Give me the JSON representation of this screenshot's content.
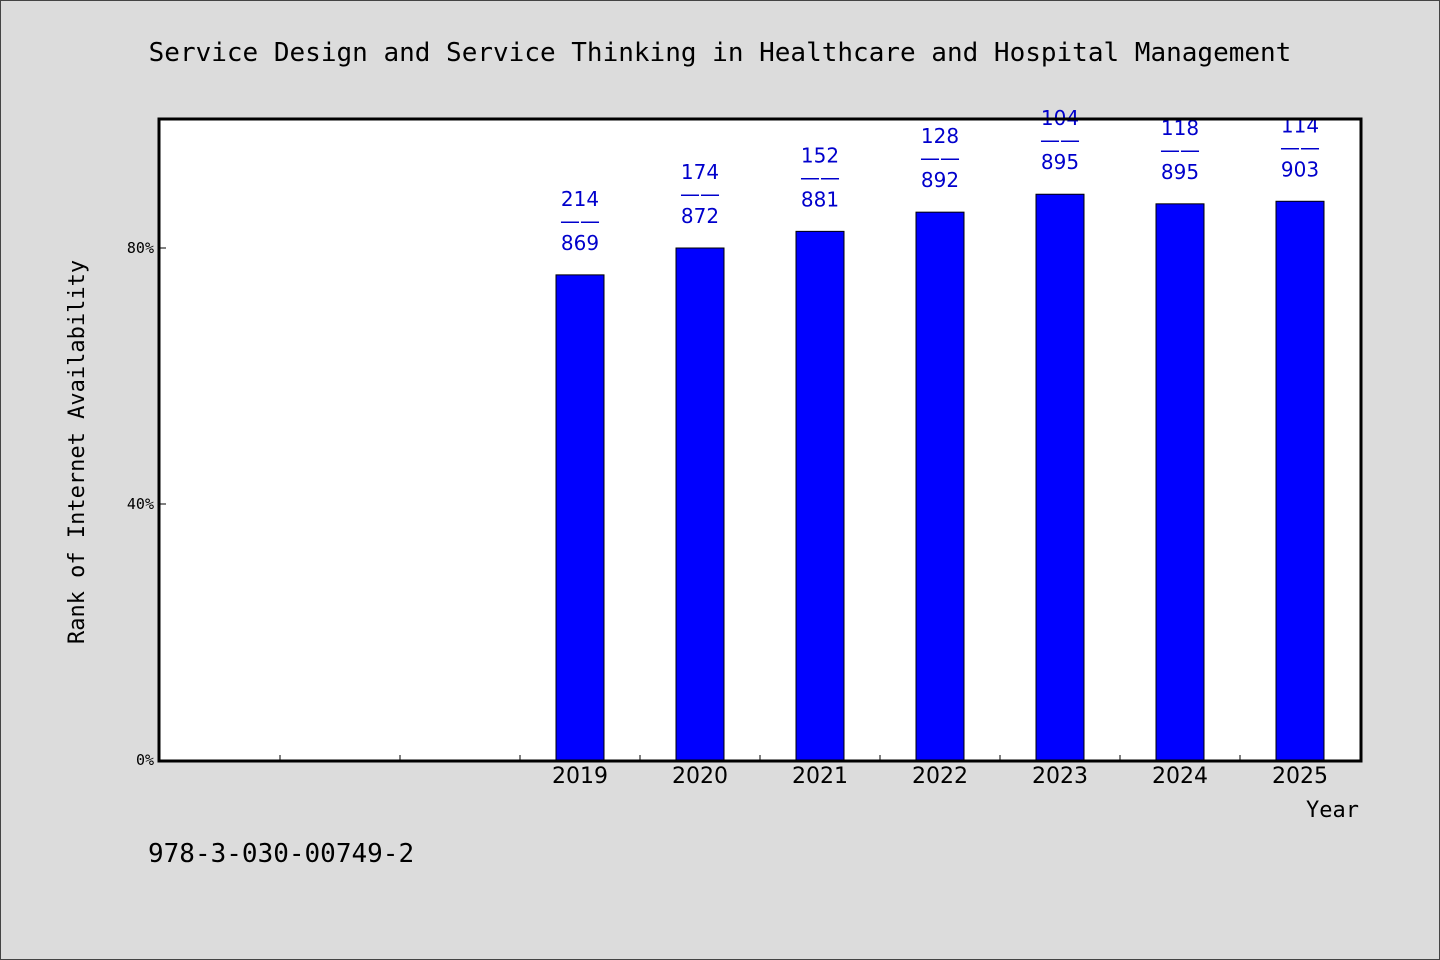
{
  "chart_data": {
    "type": "bar",
    "title": "Service Design and Service Thinking in Healthcare and Hospital Management",
    "xlabel": "Year",
    "ylabel": "Rank of Internet Availability",
    "ylim": [
      0,
      100
    ],
    "yticks": [
      0,
      40,
      80
    ],
    "ytick_labels": [
      "0%",
      "40%",
      "80%"
    ],
    "categories": [
      "2019",
      "2020",
      "2021",
      "2022",
      "2023",
      "2024",
      "2025"
    ],
    "slots_before_categories": 3,
    "values": [
      75.8,
      80.0,
      82.6,
      85.6,
      88.4,
      86.9,
      87.3
    ],
    "bar_labels": [
      {
        "top": "214",
        "sep": "——",
        "bottom": "869"
      },
      {
        "top": "174",
        "sep": "——",
        "bottom": "872"
      },
      {
        "top": "152",
        "sep": "——",
        "bottom": "881"
      },
      {
        "top": "128",
        "sep": "——",
        "bottom": "892"
      },
      {
        "top": "104",
        "sep": "——",
        "bottom": "895"
      },
      {
        "top": "118",
        "sep": "——",
        "bottom": "895"
      },
      {
        "top": "114",
        "sep": "——",
        "bottom": "903"
      }
    ],
    "bar_color": "#0000ff",
    "label_color": "#0000cc",
    "grid": false,
    "legend": "none"
  },
  "footer": {
    "isbn": "978-3-030-00749-2"
  }
}
